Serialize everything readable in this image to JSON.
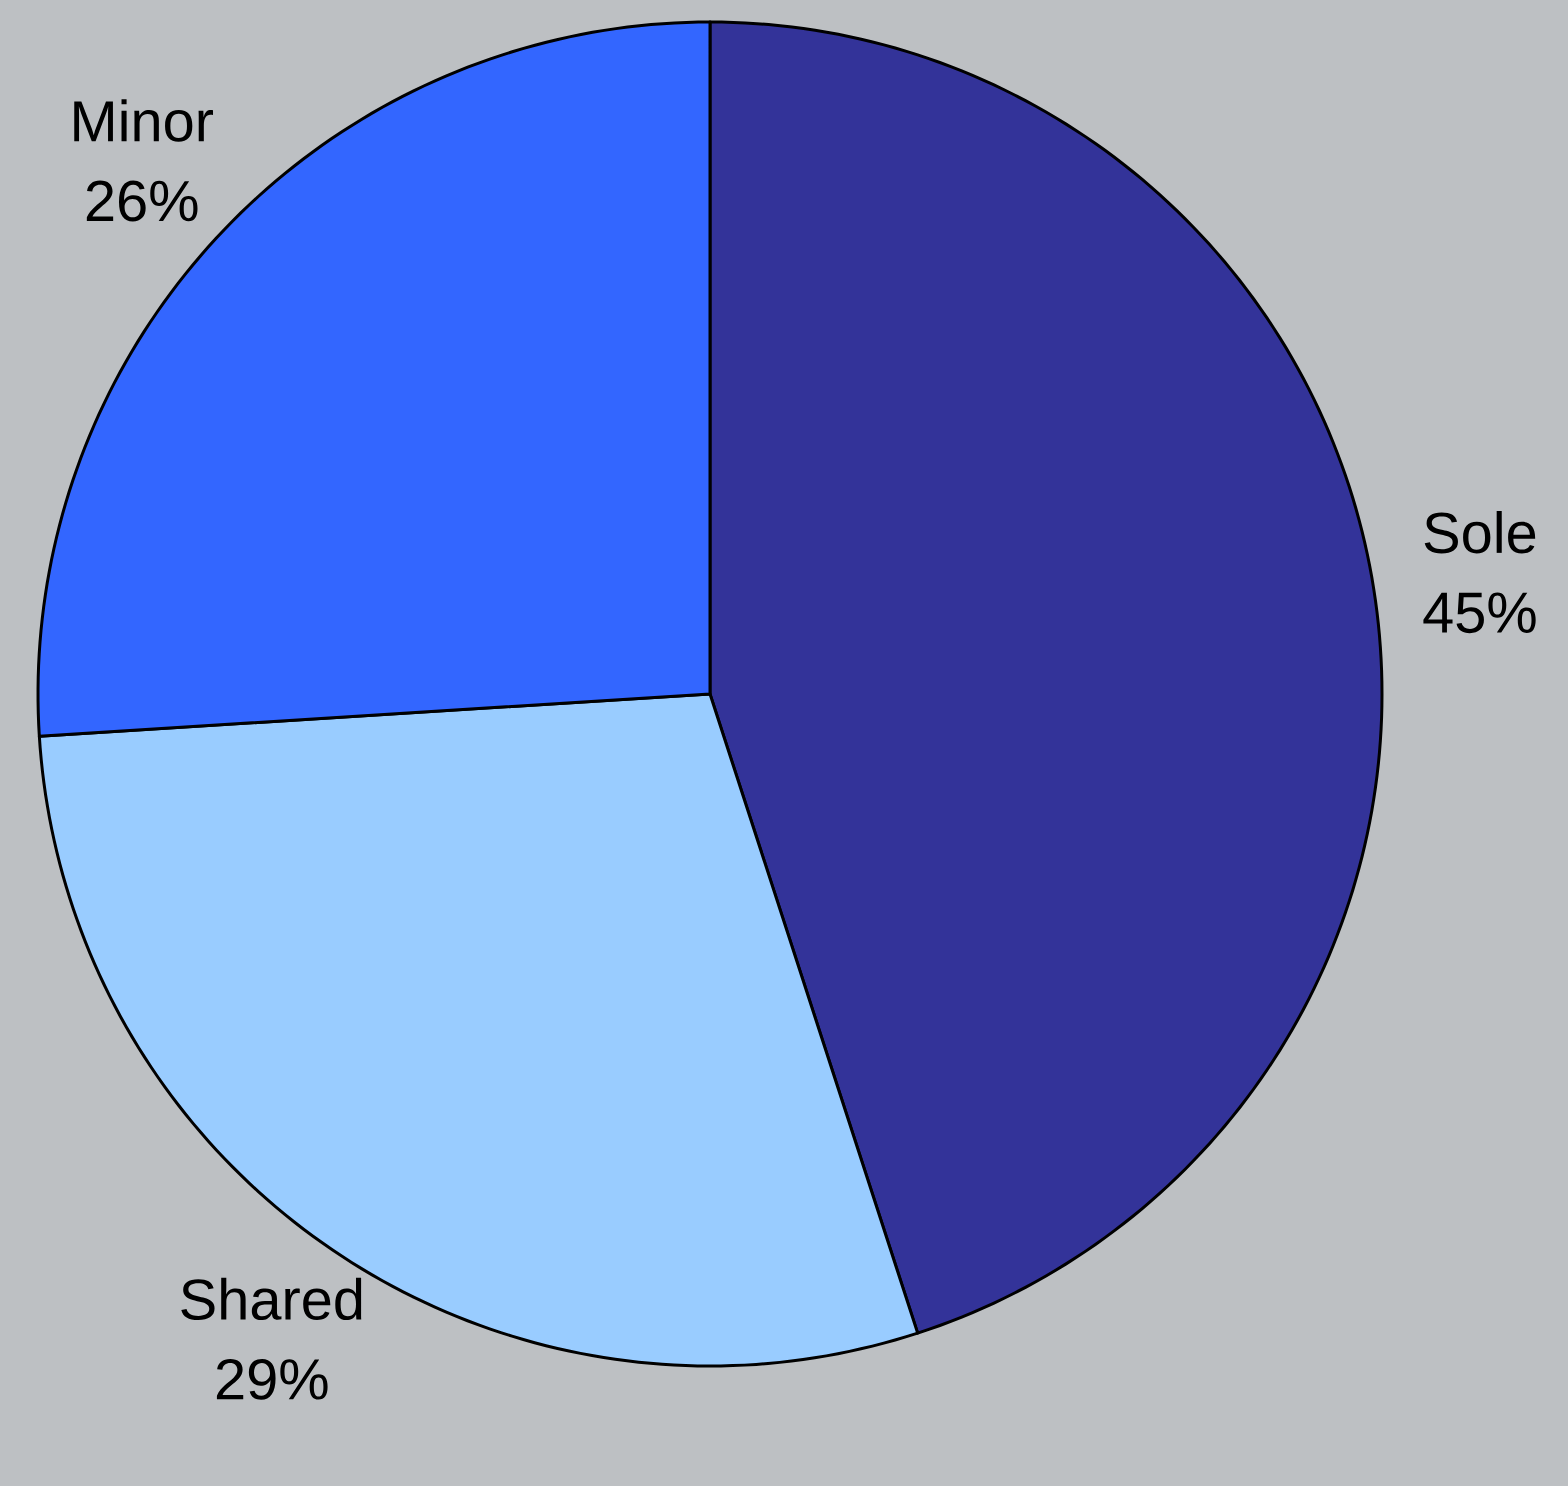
{
  "chart_data": {
    "type": "pie",
    "categories": [
      "Sole",
      "Shared",
      "Minor"
    ],
    "values": [
      45,
      29,
      26
    ],
    "value_labels": [
      "45%",
      "29%",
      "26%"
    ],
    "colors": [
      "#333399",
      "#99ccff",
      "#3366ff"
    ]
  }
}
